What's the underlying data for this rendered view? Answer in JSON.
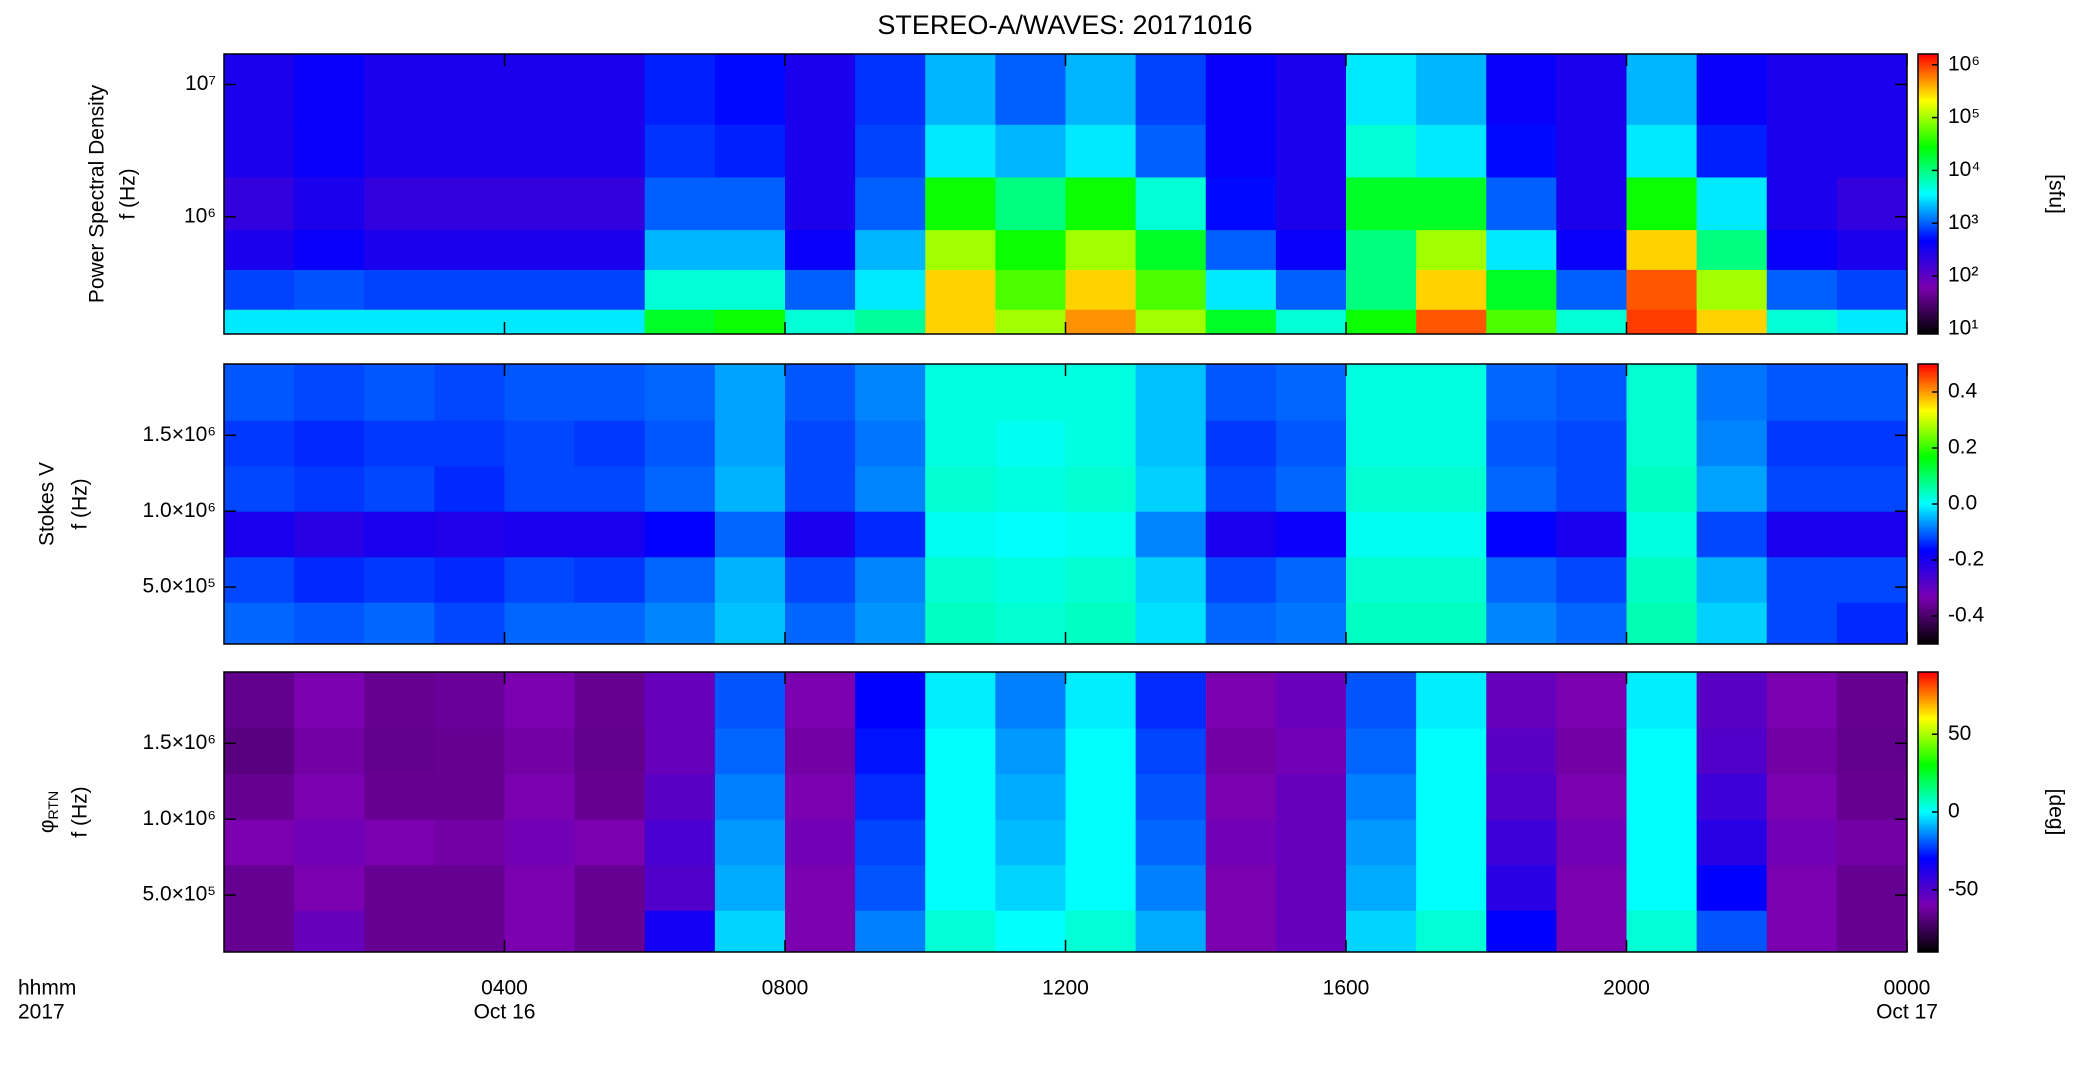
{
  "chart_data": [
    {
      "type": "heatmap",
      "title": "STEREO-A/WAVES: 20171016",
      "ylabel": [
        "Power Spectral Density",
        "f (Hz)"
      ],
      "colormap": [
        "#000000",
        "#7a00b0",
        "#0000ff",
        "#00ffff",
        "#00ff00",
        "#ffff00",
        "#ff0000"
      ],
      "xlim": [
        0,
        24
      ],
      "ylim": [
        130000,
        17000000
      ],
      "ylog": true,
      "yticks": [
        {
          "value": 1000000,
          "label": "10⁶"
        },
        {
          "value": 10000000,
          "label": "10⁷"
        }
      ],
      "zlim": [
        8,
        1600000
      ],
      "zlog": true,
      "zlabel": "[sfu]",
      "zticks": [
        {
          "value": 10,
          "label": "10¹"
        },
        {
          "value": 100,
          "label": "10²"
        },
        {
          "value": 1000,
          "label": "10³"
        },
        {
          "value": 10000,
          "label": "10⁴"
        },
        {
          "value": 100000,
          "label": "10⁵"
        },
        {
          "value": 1000000,
          "label": "10⁶"
        }
      ],
      "x_bins": [
        0,
        1,
        2,
        3,
        4,
        5,
        6,
        7,
        8,
        9,
        10,
        11,
        12,
        13,
        14,
        15,
        16,
        17,
        18,
        19,
        20,
        21,
        22,
        23,
        24
      ],
      "y_bins": [
        130000,
        200000,
        400000,
        800000,
        2000000,
        5000000,
        17000000
      ],
      "z": [
        [
          3000,
          3000,
          3000,
          3000,
          3000,
          3000,
          20000,
          30000,
          5000,
          8000,
          300000,
          100000,
          500000,
          100000,
          20000,
          5000,
          30000,
          800000,
          50000,
          5000,
          1000000,
          300000,
          5000,
          3000
        ],
        [
          800,
          900,
          800,
          800,
          800,
          800,
          5000,
          5000,
          1000,
          3000,
          300000,
          50000,
          300000,
          50000,
          3000,
          1000,
          10000,
          300000,
          20000,
          1000,
          800000,
          100000,
          1000,
          800
        ],
        [
          300,
          400,
          300,
          300,
          300,
          300,
          2000,
          2000,
          400,
          2000,
          100000,
          30000,
          100000,
          20000,
          1000,
          400,
          10000,
          100000,
          3000,
          400,
          300000,
          10000,
          400,
          300
        ],
        [
          200,
          300,
          200,
          200,
          200,
          200,
          1000,
          1000,
          300,
          1000,
          30000,
          10000,
          30000,
          5000,
          500,
          300,
          20000,
          20000,
          1000,
          300,
          30000,
          3000,
          300,
          200
        ],
        [
          300,
          400,
          300,
          300,
          300,
          300,
          700,
          600,
          300,
          800,
          3000,
          2000,
          3000,
          1000,
          400,
          300,
          5000,
          3000,
          500,
          300,
          3000,
          600,
          300,
          300
        ],
        [
          300,
          400,
          300,
          300,
          300,
          300,
          600,
          500,
          300,
          700,
          2000,
          1000,
          2000,
          800,
          400,
          300,
          3000,
          2000,
          400,
          300,
          2000,
          400,
          300,
          300
        ]
      ]
    },
    {
      "type": "heatmap",
      "ylabel": [
        "Stokes V",
        "f (Hz)"
      ],
      "colormap": [
        "#000000",
        "#7a00b0",
        "#0000ff",
        "#00ffff",
        "#00ff00",
        "#ffff00",
        "#ff0000"
      ],
      "xlim": [
        0,
        24
      ],
      "ylim": [
        125000,
        1970000
      ],
      "ylog": false,
      "yticks": [
        {
          "value": 500000,
          "label": "5.0×10⁵"
        },
        {
          "value": 1000000,
          "label": "1.0×10⁶"
        },
        {
          "value": 1500000,
          "label": "1.5×10⁶"
        }
      ],
      "zlim": [
        -0.5,
        0.5
      ],
      "zlog": false,
      "zticks": [
        {
          "value": -0.4,
          "label": "-0.4"
        },
        {
          "value": -0.2,
          "label": "-0.2"
        },
        {
          "value": 0,
          "label": "0.0"
        },
        {
          "value": 0.2,
          "label": "0.2"
        },
        {
          "value": 0.4,
          "label": "0.4"
        }
      ],
      "x_bins": [
        0,
        1,
        2,
        3,
        4,
        5,
        6,
        7,
        8,
        9,
        10,
        11,
        12,
        13,
        14,
        15,
        16,
        17,
        18,
        19,
        20,
        21,
        22,
        23,
        24
      ],
      "y_bins": [
        125000,
        400000,
        700000,
        1000000,
        1300000,
        1600000,
        1970000
      ],
      "z": [
        [
          -0.1,
          -0.11,
          -0.1,
          -0.12,
          -0.1,
          -0.1,
          -0.08,
          -0.04,
          -0.1,
          -0.07,
          0.04,
          0.03,
          0.04,
          -0.02,
          -0.1,
          -0.09,
          0.04,
          0.04,
          -0.08,
          -0.1,
          0.05,
          -0.03,
          -0.12,
          -0.14
        ],
        [
          -0.12,
          -0.14,
          -0.13,
          -0.14,
          -0.12,
          -0.13,
          -0.1,
          -0.05,
          -0.12,
          -0.08,
          0.03,
          0.02,
          0.03,
          -0.03,
          -0.12,
          -0.1,
          0.03,
          0.03,
          -0.1,
          -0.12,
          0.04,
          -0.05,
          -0.12,
          -0.12
        ],
        [
          -0.2,
          -0.22,
          -0.2,
          -0.21,
          -0.2,
          -0.2,
          -0.17,
          -0.1,
          -0.2,
          -0.14,
          0.01,
          0,
          0.01,
          -0.08,
          -0.2,
          -0.18,
          0.01,
          0.01,
          -0.17,
          -0.2,
          0.02,
          -0.12,
          -0.2,
          -0.2
        ],
        [
          -0.12,
          -0.13,
          -0.12,
          -0.14,
          -0.12,
          -0.12,
          -0.1,
          -0.05,
          -0.12,
          -0.08,
          0.03,
          0.02,
          0.03,
          -0.03,
          -0.12,
          -0.1,
          0.03,
          0.03,
          -0.1,
          -0.12,
          0.04,
          -0.06,
          -0.12,
          -0.12
        ],
        [
          -0.13,
          -0.14,
          -0.13,
          -0.13,
          -0.12,
          -0.13,
          -0.11,
          -0.06,
          -0.12,
          -0.09,
          0.02,
          0.01,
          0.02,
          -0.04,
          -0.13,
          -0.11,
          0.02,
          0.02,
          -0.11,
          -0.12,
          0.03,
          -0.08,
          -0.13,
          -0.13
        ],
        [
          -0.11,
          -0.12,
          -0.11,
          -0.12,
          -0.11,
          -0.11,
          -0.1,
          -0.06,
          -0.11,
          -0.08,
          0.02,
          0.02,
          0.02,
          -0.04,
          -0.11,
          -0.1,
          0.02,
          0.02,
          -0.1,
          -0.11,
          0.03,
          -0.09,
          -0.11,
          -0.11
        ]
      ]
    },
    {
      "type": "heatmap",
      "ylabel": [
        "φ",
        "f (Hz)"
      ],
      "ylabel_sub": "RTN",
      "colormap": [
        "#000000",
        "#7a00b0",
        "#0000ff",
        "#00ffff",
        "#00ff00",
        "#ffff00",
        "#ff0000"
      ],
      "xlim": [
        0,
        24
      ],
      "ylim": [
        125000,
        1970000
      ],
      "ylog": false,
      "yticks": [
        {
          "value": 500000,
          "label": "5.0×10⁵"
        },
        {
          "value": 1000000,
          "label": "1.0×10⁶"
        },
        {
          "value": 1500000,
          "label": "1.5×10⁶"
        }
      ],
      "zlim": [
        -90,
        90
      ],
      "zlog": false,
      "zlabel": "[deg]",
      "zticks": [
        -50,
        0,
        50
      ],
      "x_label": [
        "hhmm",
        "2017"
      ],
      "xticks": [
        {
          "value": 4,
          "label": "0400"
        },
        {
          "value": 8,
          "label": "0800"
        },
        {
          "value": 12,
          "label": "1200"
        },
        {
          "value": 16,
          "label": "1600"
        },
        {
          "value": 20,
          "label": "2000"
        },
        {
          "value": 24,
          "label": "0000"
        }
      ],
      "xtick_dates": [
        {
          "value": 4,
          "label": "Oct 16"
        },
        {
          "value": 24,
          "label": "Oct 17"
        }
      ],
      "x_bins": [
        0,
        1,
        2,
        3,
        4,
        5,
        6,
        7,
        8,
        9,
        10,
        11,
        12,
        13,
        14,
        15,
        16,
        17,
        18,
        19,
        20,
        21,
        22,
        23,
        24
      ],
      "y_bins": [
        125000,
        400000,
        700000,
        1000000,
        1300000,
        1600000,
        1970000
      ],
      "z": [
        [
          -65,
          -55,
          -65,
          -65,
          -60,
          -65,
          -35,
          -5,
          -60,
          -15,
          5,
          0,
          5,
          -10,
          -60,
          -55,
          -5,
          5,
          -30,
          -60,
          5,
          -20,
          -60,
          -65
        ],
        [
          -65,
          -60,
          -65,
          -65,
          -60,
          -65,
          -50,
          -10,
          -60,
          -20,
          0,
          -5,
          0,
          -15,
          -60,
          -55,
          -10,
          0,
          -40,
          -60,
          0,
          -30,
          -60,
          -65
        ],
        [
          -60,
          -58,
          -60,
          -62,
          -58,
          -60,
          -48,
          -12,
          -58,
          -22,
          0,
          -8,
          0,
          -18,
          -58,
          -55,
          -12,
          0,
          -45,
          -58,
          0,
          -40,
          -58,
          -62
        ],
        [
          -65,
          -60,
          -65,
          -65,
          -60,
          -65,
          -52,
          -15,
          -60,
          -25,
          0,
          -10,
          0,
          -20,
          -60,
          -55,
          -15,
          0,
          -50,
          -60,
          0,
          -45,
          -60,
          -65
        ],
        [
          -68,
          -62,
          -66,
          -65,
          -62,
          -66,
          -55,
          -18,
          -62,
          -28,
          0,
          -12,
          0,
          -22,
          -62,
          -58,
          -18,
          0,
          -52,
          -62,
          0,
          -50,
          -62,
          -66
        ],
        [
          -66,
          -60,
          -65,
          -64,
          -60,
          -65,
          -55,
          -20,
          -60,
          -30,
          -2,
          -15,
          -2,
          -25,
          -60,
          -56,
          -20,
          -2,
          -55,
          -60,
          -2,
          -52,
          -60,
          -65
        ]
      ]
    }
  ]
}
